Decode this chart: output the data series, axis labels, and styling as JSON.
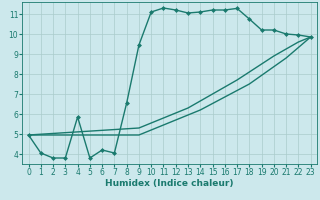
{
  "bg_color": "#cce8ec",
  "grid_color": "#aacccc",
  "line_color": "#1a7a6e",
  "marker": "D",
  "markersize": 2.5,
  "linewidth": 1.0,
  "xlabel": "Humidex (Indice chaleur)",
  "xlabel_fontsize": 6.5,
  "tick_fontsize": 5.5,
  "xlim": [
    -0.5,
    23.5
  ],
  "ylim": [
    3.5,
    11.6
  ],
  "xticks": [
    0,
    1,
    2,
    3,
    4,
    5,
    6,
    7,
    8,
    9,
    10,
    11,
    12,
    13,
    14,
    15,
    16,
    17,
    18,
    19,
    20,
    21,
    22,
    23
  ],
  "yticks": [
    4,
    5,
    6,
    7,
    8,
    9,
    10,
    11
  ],
  "series1": [
    [
      0,
      4.95
    ],
    [
      1,
      4.05
    ],
    [
      2,
      3.8
    ],
    [
      3,
      3.8
    ],
    [
      4,
      5.85
    ],
    [
      5,
      3.8
    ],
    [
      6,
      4.2
    ],
    [
      7,
      4.05
    ],
    [
      8,
      6.55
    ],
    [
      9,
      9.45
    ],
    [
      10,
      11.1
    ],
    [
      11,
      11.3
    ],
    [
      12,
      11.2
    ],
    [
      13,
      11.05
    ],
    [
      14,
      11.1
    ],
    [
      15,
      11.2
    ],
    [
      16,
      11.2
    ],
    [
      17,
      11.28
    ],
    [
      18,
      10.75
    ],
    [
      19,
      10.2
    ],
    [
      20,
      10.2
    ],
    [
      21,
      10.0
    ],
    [
      22,
      9.95
    ],
    [
      23,
      9.85
    ]
  ],
  "series2": [
    [
      0,
      4.95
    ],
    [
      9,
      4.95
    ],
    [
      14,
      6.2
    ],
    [
      18,
      7.5
    ],
    [
      21,
      8.8
    ],
    [
      23,
      9.85
    ]
  ],
  "series3": [
    [
      0,
      4.95
    ],
    [
      9,
      5.3
    ],
    [
      13,
      6.3
    ],
    [
      17,
      7.7
    ],
    [
      20,
      8.9
    ],
    [
      22,
      9.6
    ],
    [
      23,
      9.85
    ]
  ]
}
